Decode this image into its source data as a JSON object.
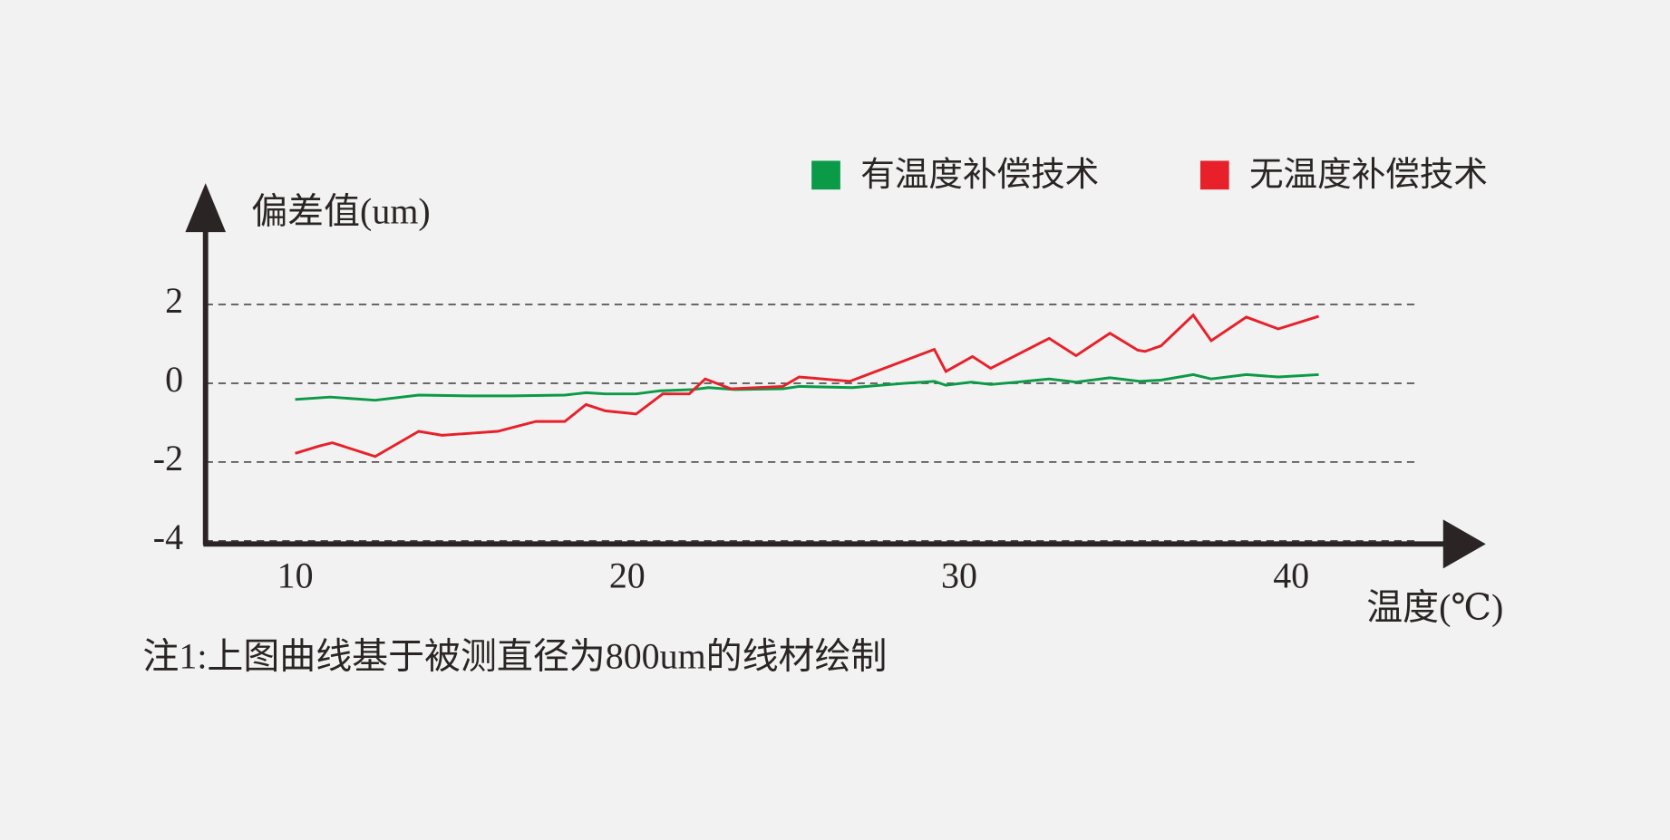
{
  "chart_data": {
    "type": "line",
    "y_label": "偏差值(um)",
    "x_label": "温度(℃)",
    "note": "注1:上图曲线基于被测直径为800um的线材绘制",
    "xlim": [
      7.3,
      44
    ],
    "xticks": [
      10,
      20,
      30,
      40
    ],
    "ylim": [
      -4,
      4
    ],
    "yticks": [
      -4,
      -2,
      0,
      2
    ],
    "grid": true,
    "legend": "top-right",
    "series": [
      {
        "name": "有温度补偿技术",
        "color": "#0a9a48",
        "x": [
          10,
          11.06,
          12.41,
          13.72,
          15.23,
          16.51,
          18.12,
          18.76,
          19.34,
          20.27,
          21.0,
          21.97,
          22.45,
          23.25,
          24.69,
          25.18,
          26.78,
          28.38,
          29.25,
          29.6,
          30.37,
          30.95,
          31.75,
          32.71,
          33.52,
          34.54,
          35.44,
          36.08,
          37.05,
          37.59,
          38.65,
          39.61,
          40.83
        ],
        "values": [
          -0.41,
          -0.35,
          -0.43,
          -0.3,
          -0.32,
          -0.32,
          -0.3,
          -0.24,
          -0.27,
          -0.27,
          -0.19,
          -0.16,
          -0.11,
          -0.16,
          -0.14,
          -0.08,
          -0.11,
          0.0,
          0.05,
          -0.05,
          0.03,
          -0.03,
          0.03,
          0.11,
          0.03,
          0.14,
          0.05,
          0.08,
          0.22,
          0.11,
          0.22,
          0.16,
          0.22
        ]
      },
      {
        "name": "无温度补偿技术",
        "color": "#e8202a",
        "x": [
          10,
          10.74,
          11.12,
          12.41,
          13.72,
          14.43,
          16.1,
          17.25,
          18.12,
          18.76,
          19.34,
          20.27,
          21.07,
          21.87,
          22.35,
          23.12,
          24.69,
          25.18,
          26.71,
          29.25,
          29.6,
          30.4,
          30.95,
          32.71,
          33.52,
          34.54,
          35.38,
          35.6,
          36.08,
          37.05,
          37.59,
          38.65,
          39.61,
          40.83
        ],
        "values": [
          -1.78,
          -1.59,
          -1.51,
          -1.86,
          -1.22,
          -1.32,
          -1.22,
          -0.97,
          -0.97,
          -0.54,
          -0.7,
          -0.78,
          -0.27,
          -0.27,
          0.11,
          -0.14,
          -0.08,
          0.16,
          0.05,
          0.86,
          0.3,
          0.68,
          0.38,
          1.14,
          0.7,
          1.27,
          0.84,
          0.81,
          0.95,
          1.73,
          1.08,
          1.68,
          1.38,
          1.7
        ]
      }
    ]
  }
}
